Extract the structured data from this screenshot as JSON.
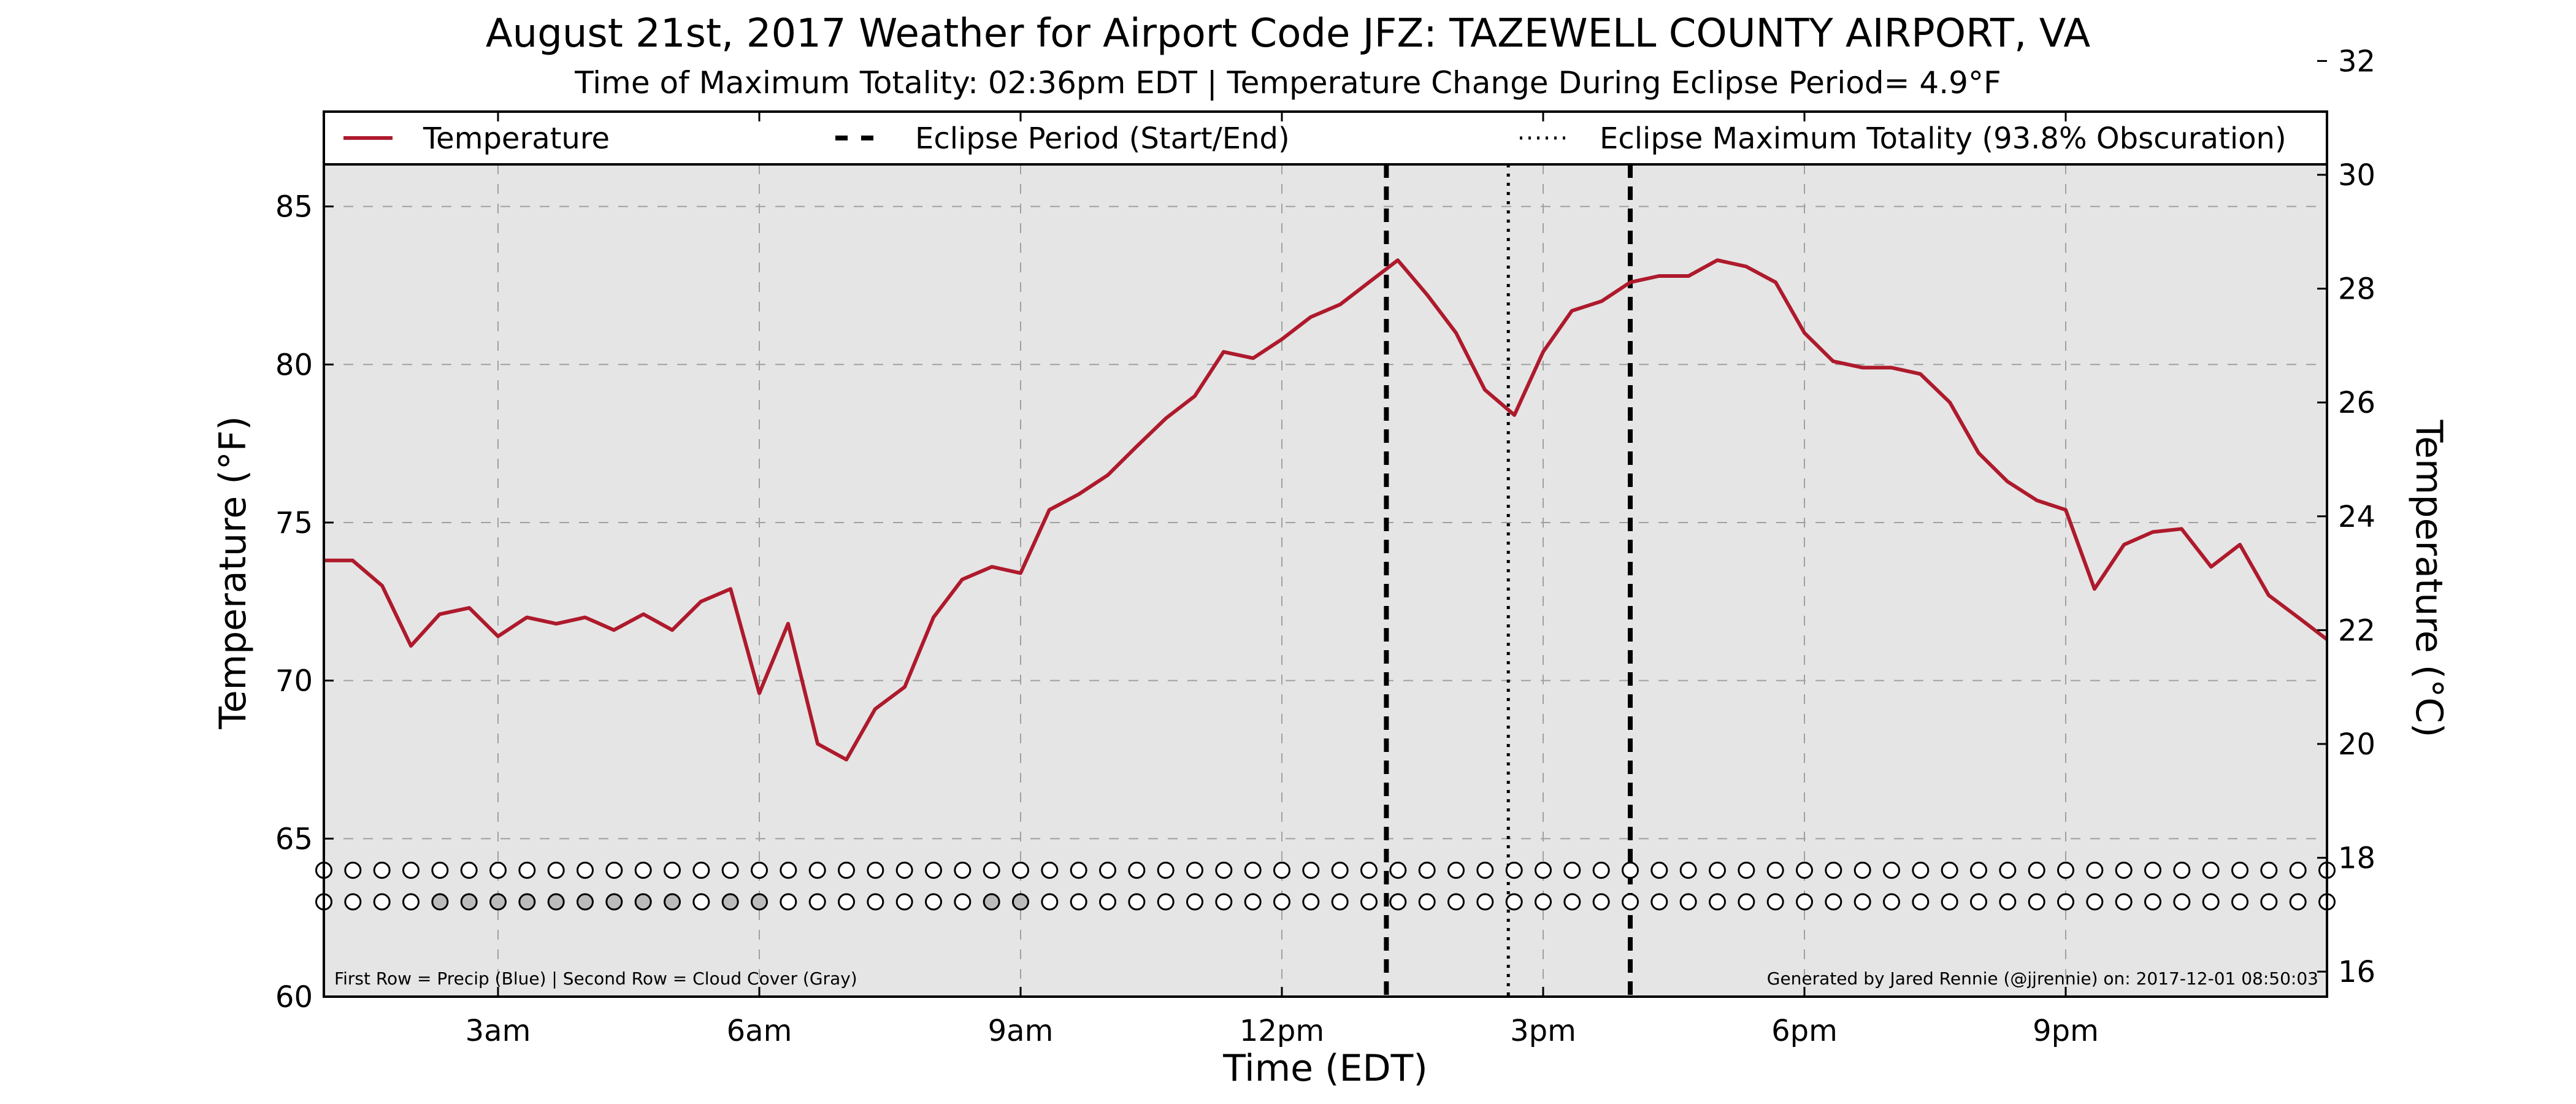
{
  "chart_data": {
    "type": "line",
    "title": "August 21st, 2017 Weather for Airport Code JFZ: TAZEWELL COUNTY AIRPORT, VA",
    "subtitle": "Time of Maximum Totality: 02:36pm EDT | Temperature Change During Eclipse Period= 4.9°F",
    "xlabel": "Time (EDT)",
    "ylabel": "Temperature (°F)",
    "y2label": "Temperature (°C)",
    "xlim": [
      1.0,
      24.0
    ],
    "ylim": [
      60,
      88
    ],
    "y2lim": [
      15.56,
      31.11
    ],
    "x_ticks": [
      {
        "value": 3,
        "label": "3am"
      },
      {
        "value": 6,
        "label": "6am"
      },
      {
        "value": 9,
        "label": "9am"
      },
      {
        "value": 12,
        "label": "12pm"
      },
      {
        "value": 15,
        "label": "3pm"
      },
      {
        "value": 18,
        "label": "6pm"
      },
      {
        "value": 21,
        "label": "9pm"
      }
    ],
    "y_ticks": [
      60,
      65,
      70,
      75,
      80,
      85
    ],
    "y2_ticks": [
      16,
      18,
      20,
      22,
      24,
      26,
      28,
      30,
      32
    ],
    "grid": true,
    "legend_position": "top",
    "legend": {
      "temperature": "Temperature",
      "eclipse_period": "Eclipse Period (Start/End)",
      "max_totality": "Eclipse Maximum Totality (93.8% Obscuration)"
    },
    "series": [
      {
        "name": "Temperature",
        "color": "#ae1a2c",
        "x": [
          1.0,
          1.33,
          1.67,
          2.0,
          2.33,
          2.67,
          3.0,
          3.33,
          3.67,
          4.0,
          4.33,
          4.67,
          5.0,
          5.33,
          5.67,
          6.0,
          6.33,
          6.67,
          7.0,
          7.33,
          7.67,
          8.0,
          8.33,
          8.67,
          9.0,
          9.33,
          9.67,
          10.0,
          10.33,
          10.67,
          11.0,
          11.33,
          11.67,
          12.0,
          12.33,
          12.67,
          13.0,
          13.33,
          13.67,
          14.0,
          14.33,
          14.67,
          15.0,
          15.33,
          15.67,
          16.0,
          16.33,
          16.67,
          17.0,
          17.33,
          17.67,
          18.0,
          18.33,
          18.67,
          19.0,
          19.33,
          19.67,
          20.0,
          20.33,
          20.67,
          21.0,
          21.33,
          21.67,
          22.0,
          22.33,
          22.67,
          23.0,
          23.33,
          23.67,
          24.0
        ],
        "y": [
          73.8,
          73.8,
          73.0,
          71.1,
          72.1,
          72.3,
          71.4,
          72.0,
          71.8,
          72.0,
          71.6,
          72.1,
          71.6,
          72.5,
          72.9,
          69.6,
          71.8,
          68.0,
          67.5,
          69.1,
          69.8,
          72.0,
          73.2,
          73.6,
          73.4,
          75.4,
          75.9,
          76.5,
          77.4,
          78.3,
          79.0,
          80.4,
          80.2,
          80.8,
          81.5,
          81.9,
          82.6,
          83.3,
          82.2,
          81.0,
          79.2,
          78.4,
          80.4,
          81.7,
          82.0,
          82.6,
          82.8,
          82.8,
          83.3,
          83.1,
          82.6,
          81.0,
          80.1,
          79.9,
          79.9,
          79.7,
          78.8,
          77.2,
          76.3,
          75.7,
          75.4,
          72.9,
          74.3,
          74.7,
          74.8,
          73.6,
          74.3,
          72.7,
          72.0,
          71.3
        ]
      }
    ],
    "eclipse": {
      "start": 13.2,
      "end": 16.0,
      "max_totality": 14.6
    },
    "precip_row": [
      "#ffffff",
      "#ffffff",
      "#ffffff",
      "#ffffff",
      "#ffffff",
      "#ffffff",
      "#ffffff",
      "#ffffff",
      "#ffffff",
      "#ffffff",
      "#ffffff",
      "#ffffff",
      "#ffffff",
      "#ffffff",
      "#ffffff",
      "#ffffff",
      "#ffffff",
      "#ffffff",
      "#ffffff",
      "#ffffff",
      "#ffffff",
      "#ffffff",
      "#ffffff",
      "#ffffff",
      "#ffffff",
      "#ffffff",
      "#ffffff",
      "#ffffff",
      "#ffffff",
      "#ffffff",
      "#ffffff",
      "#ffffff",
      "#ffffff",
      "#ffffff",
      "#ffffff",
      "#ffffff",
      "#ffffff",
      "#ffffff",
      "#ffffff",
      "#ffffff",
      "#ffffff",
      "#ffffff",
      "#ffffff",
      "#ffffff",
      "#ffffff",
      "#ffffff",
      "#ffffff",
      "#ffffff",
      "#ffffff",
      "#ffffff",
      "#ffffff",
      "#ffffff",
      "#ffffff",
      "#ffffff",
      "#ffffff",
      "#ffffff",
      "#ffffff",
      "#ffffff",
      "#ffffff",
      "#ffffff",
      "#ffffff",
      "#ffffff",
      "#ffffff",
      "#ffffff",
      "#ffffff",
      "#ffffff",
      "#ffffff",
      "#ffffff",
      "#ffffff",
      "#ffffff"
    ],
    "cloud_row": [
      "#ffffff",
      "#ffffff",
      "#ffffff",
      "#ffffff",
      "#bbbbbb",
      "#bbbbbb",
      "#bbbbbb",
      "#bbbbbb",
      "#bbbbbb",
      "#bbbbbb",
      "#bbbbbb",
      "#bbbbbb",
      "#bbbbbb",
      "#ffffff",
      "#bbbbbb",
      "#bbbbbb",
      "#ffffff",
      "#ffffff",
      "#ffffff",
      "#ffffff",
      "#ffffff",
      "#ffffff",
      "#ffffff",
      "#bbbbbb",
      "#bbbbbb",
      "#ffffff",
      "#ffffff",
      "#ffffff",
      "#ffffff",
      "#ffffff",
      "#ffffff",
      "#ffffff",
      "#ffffff",
      "#ffffff",
      "#ffffff",
      "#ffffff",
      "#ffffff",
      "#ffffff",
      "#ffffff",
      "#ffffff",
      "#ffffff",
      "#ffffff",
      "#ffffff",
      "#ffffff",
      "#ffffff",
      "#ffffff",
      "#ffffff",
      "#ffffff",
      "#ffffff",
      "#ffffff",
      "#ffffff",
      "#ffffff",
      "#ffffff",
      "#ffffff",
      "#ffffff",
      "#ffffff",
      "#ffffff",
      "#ffffff",
      "#ffffff",
      "#ffffff",
      "#ffffff",
      "#ffffff",
      "#ffffff",
      "#ffffff",
      "#ffffff",
      "#ffffff",
      "#ffffff",
      "#ffffff",
      "#ffffff",
      "#ffffff"
    ],
    "row_y_values": [
      64.0,
      63.0
    ],
    "footnote_left": "First Row = Precip (Blue) | Second Row = Cloud Cover (Gray)",
    "footnote_right": "Generated by Jared Rennie (@jjrennie) on: 2017-12-01 08:50:03",
    "colors": {
      "plot_background": "#e5e5e5",
      "grid": "#a0a0a0",
      "line": "#ae1a2c"
    }
  }
}
